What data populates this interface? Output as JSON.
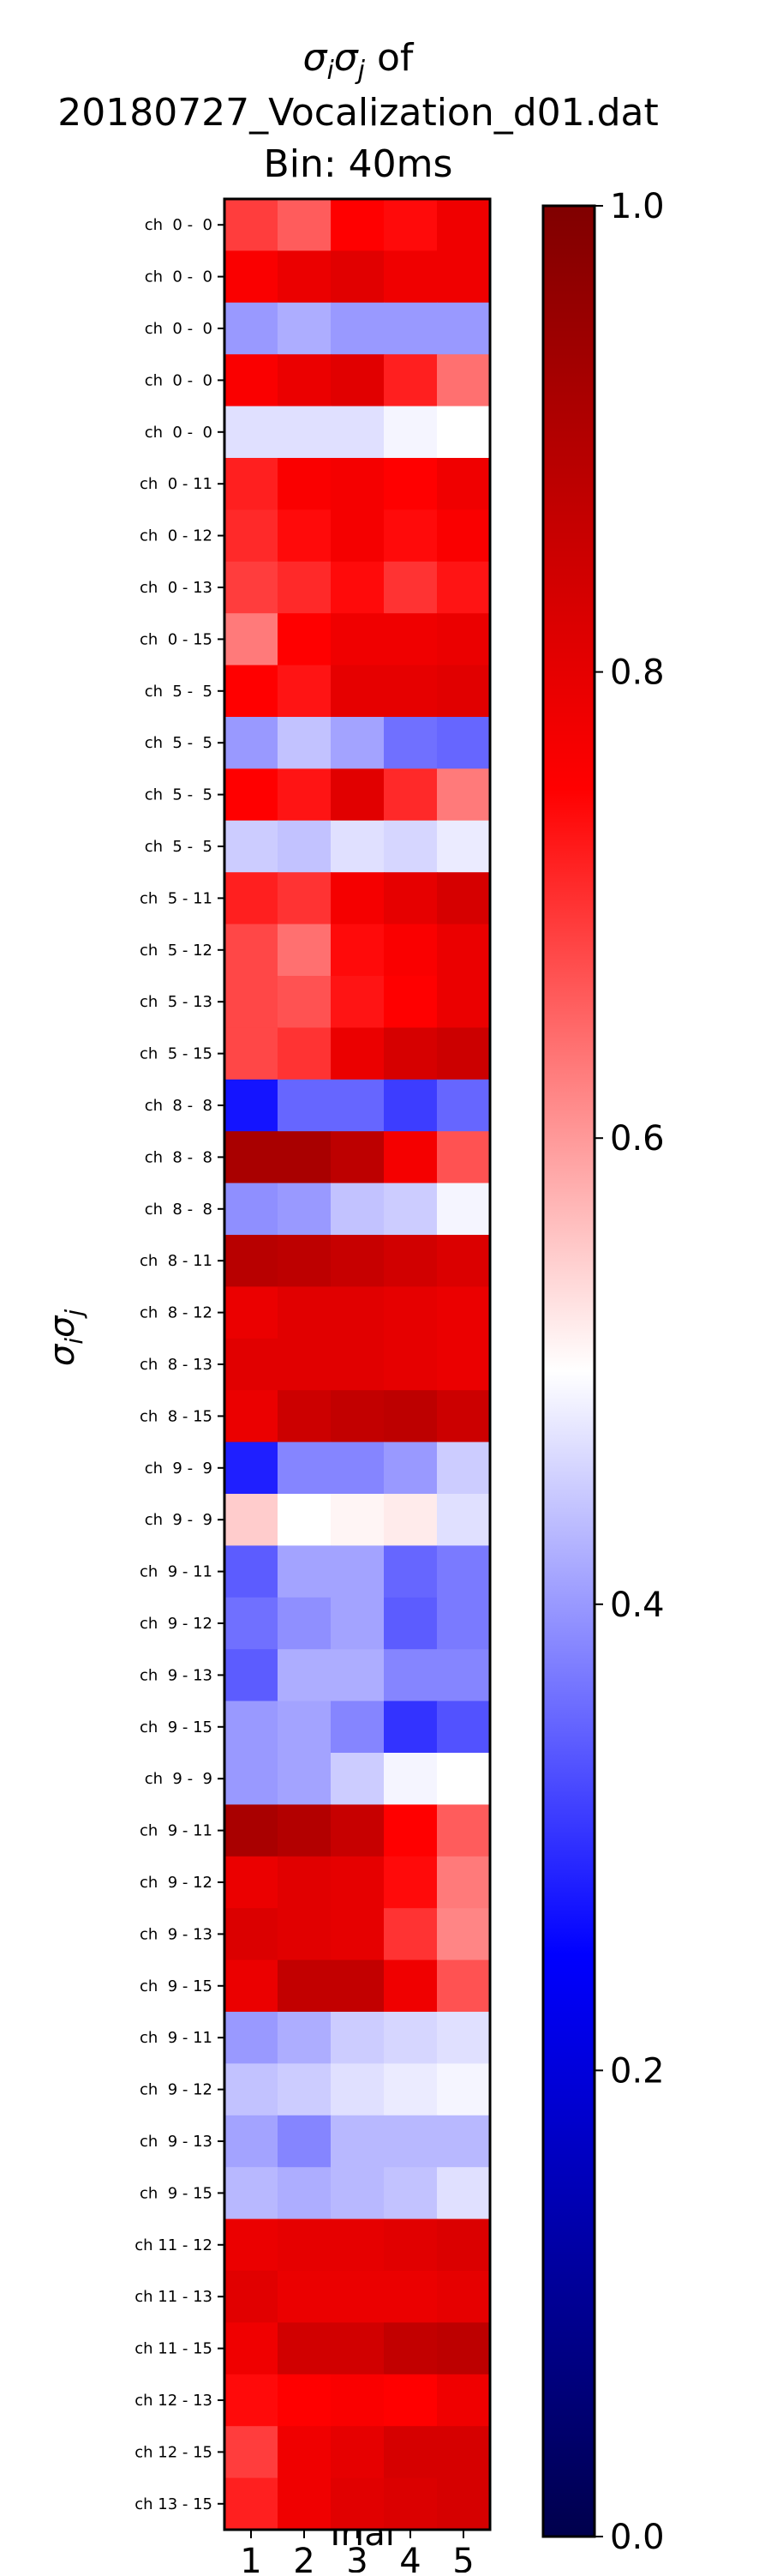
{
  "chart_data": {
    "type": "heatmap",
    "title_lines": [
      "σiσj of",
      "20180727_Vocalization_d01.dat",
      "Bin: 40ms"
    ],
    "title_prefix": "of",
    "xlabel": "Trial",
    "ylabel": "σiσj",
    "x": [
      "1",
      "2",
      "3",
      "4",
      "5"
    ],
    "y": [
      "ch  0 -  0",
      "ch  0 -  0",
      "ch  0 -  0",
      "ch  0 -  0",
      "ch  0 -  0",
      "ch  0 - 11",
      "ch  0 - 12",
      "ch  0 - 13",
      "ch  0 - 15",
      "ch  5 -  5",
      "ch  5 -  5",
      "ch  5 -  5",
      "ch  5 -  5",
      "ch  5 - 11",
      "ch  5 - 12",
      "ch  5 - 13",
      "ch  5 - 15",
      "ch  8 -  8",
      "ch  8 -  8",
      "ch  8 -  8",
      "ch  8 - 11",
      "ch  8 - 12",
      "ch  8 - 13",
      "ch  8 - 15",
      "ch  9 -  9",
      "ch  9 -  9",
      "ch  9 - 11",
      "ch  9 - 12",
      "ch  9 - 13",
      "ch  9 - 15",
      "ch  9 -  9",
      "ch  9 - 11",
      "ch  9 - 12",
      "ch  9 - 13",
      "ch  9 - 15",
      "ch  9 - 11",
      "ch  9 - 12",
      "ch  9 - 13",
      "ch  9 - 15",
      "ch 11 - 12",
      "ch 11 - 13",
      "ch 11 - 15",
      "ch 12 - 13",
      "ch 12 - 15",
      "ch 13 - 15"
    ],
    "values": [
      [
        0.69,
        0.66,
        0.75,
        0.74,
        0.78
      ],
      [
        0.76,
        0.79,
        0.81,
        0.78,
        0.78
      ],
      [
        0.4,
        0.42,
        0.4,
        0.4,
        0.4
      ],
      [
        0.76,
        0.79,
        0.81,
        0.72,
        0.64
      ],
      [
        0.47,
        0.47,
        0.47,
        0.49,
        0.5
      ],
      [
        0.72,
        0.76,
        0.77,
        0.75,
        0.78
      ],
      [
        0.71,
        0.74,
        0.77,
        0.74,
        0.76
      ],
      [
        0.69,
        0.71,
        0.74,
        0.7,
        0.73
      ],
      [
        0.63,
        0.75,
        0.78,
        0.78,
        0.79
      ],
      [
        0.75,
        0.73,
        0.8,
        0.8,
        0.81
      ],
      [
        0.4,
        0.44,
        0.41,
        0.36,
        0.35
      ],
      [
        0.75,
        0.73,
        0.81,
        0.71,
        0.63
      ],
      [
        0.45,
        0.44,
        0.47,
        0.46,
        0.48
      ],
      [
        0.72,
        0.7,
        0.77,
        0.8,
        0.83
      ],
      [
        0.68,
        0.64,
        0.74,
        0.76,
        0.79
      ],
      [
        0.68,
        0.67,
        0.73,
        0.75,
        0.79
      ],
      [
        0.68,
        0.7,
        0.79,
        0.83,
        0.85
      ],
      [
        0.27,
        0.35,
        0.35,
        0.31,
        0.35
      ],
      [
        0.92,
        0.92,
        0.88,
        0.77,
        0.67
      ],
      [
        0.39,
        0.4,
        0.44,
        0.45,
        0.49
      ],
      [
        0.89,
        0.88,
        0.86,
        0.84,
        0.82
      ],
      [
        0.79,
        0.81,
        0.81,
        0.8,
        0.79
      ],
      [
        0.81,
        0.81,
        0.81,
        0.8,
        0.79
      ],
      [
        0.79,
        0.85,
        0.87,
        0.88,
        0.85
      ],
      [
        0.28,
        0.38,
        0.38,
        0.4,
        0.45
      ],
      [
        0.55,
        0.5,
        0.51,
        0.52,
        0.47
      ],
      [
        0.34,
        0.41,
        0.41,
        0.35,
        0.37
      ],
      [
        0.36,
        0.39,
        0.41,
        0.34,
        0.37
      ],
      [
        0.34,
        0.42,
        0.42,
        0.38,
        0.38
      ],
      [
        0.4,
        0.41,
        0.38,
        0.3,
        0.33
      ],
      [
        0.4,
        0.41,
        0.45,
        0.49,
        0.5
      ],
      [
        0.92,
        0.9,
        0.86,
        0.75,
        0.66
      ],
      [
        0.79,
        0.81,
        0.8,
        0.74,
        0.63
      ],
      [
        0.82,
        0.81,
        0.8,
        0.7,
        0.62
      ],
      [
        0.79,
        0.87,
        0.87,
        0.78,
        0.67
      ],
      [
        0.4,
        0.42,
        0.45,
        0.46,
        0.47
      ],
      [
        0.44,
        0.45,
        0.47,
        0.48,
        0.49
      ],
      [
        0.41,
        0.38,
        0.43,
        0.43,
        0.43
      ],
      [
        0.43,
        0.42,
        0.43,
        0.44,
        0.47
      ],
      [
        0.79,
        0.8,
        0.8,
        0.81,
        0.82
      ],
      [
        0.81,
        0.79,
        0.79,
        0.79,
        0.8
      ],
      [
        0.78,
        0.84,
        0.84,
        0.87,
        0.88
      ],
      [
        0.74,
        0.75,
        0.76,
        0.75,
        0.78
      ],
      [
        0.69,
        0.78,
        0.8,
        0.83,
        0.83
      ],
      [
        0.72,
        0.78,
        0.81,
        0.82,
        0.83
      ]
    ],
    "vmin": 0.0,
    "vmax": 1.0,
    "colormap": "seismic",
    "colorbar_ticks": [
      0.0,
      0.2,
      0.4,
      0.6,
      0.8,
      1.0
    ],
    "colorbar_tick_labels": [
      "0.0",
      "0.2",
      "0.4",
      "0.6",
      "0.8",
      "1.0"
    ]
  }
}
